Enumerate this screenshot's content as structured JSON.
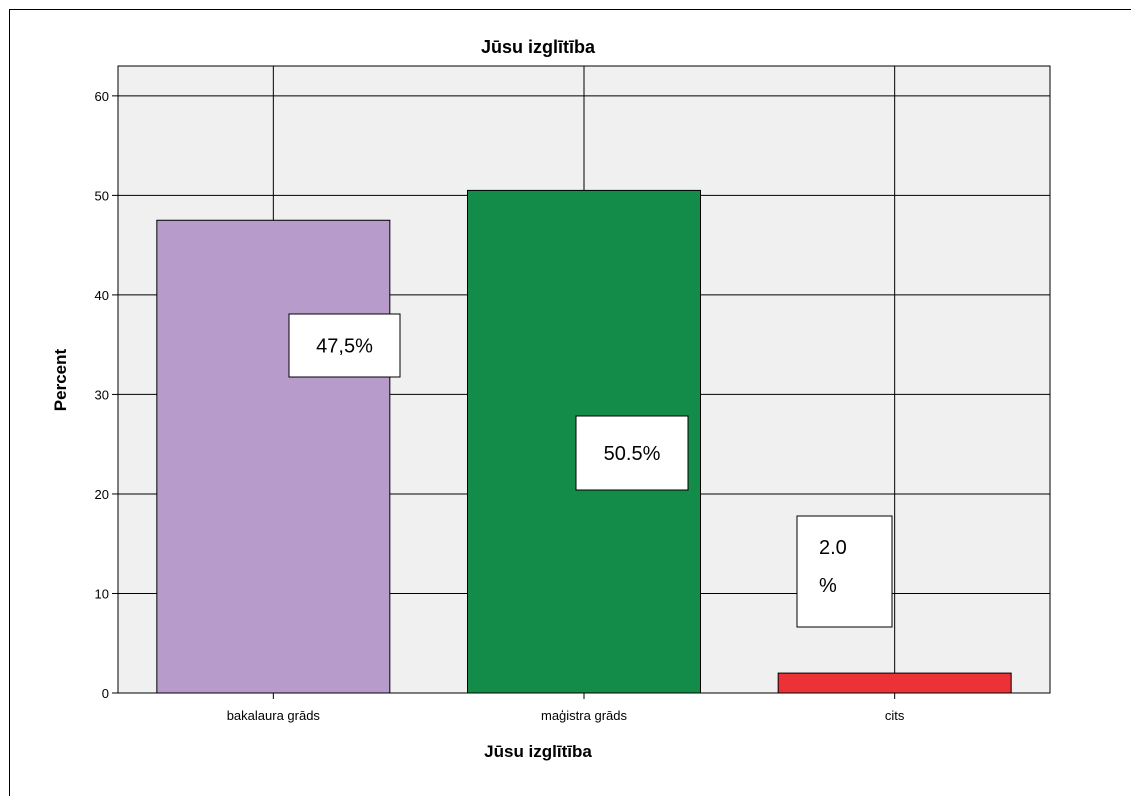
{
  "chart_data": {
    "type": "bar",
    "title": "Jūsu izglītība",
    "xlabel": "Jūsu izglītība",
    "ylabel": "Percent",
    "ylim": [
      0,
      63
    ],
    "yticks": [
      0,
      10,
      20,
      30,
      40,
      50,
      60
    ],
    "categories": [
      "bakalaura grāds",
      "maģistra grāds",
      "cits"
    ],
    "values": [
      47.5,
      50.5,
      2.0
    ],
    "colors": [
      "#b79bcb",
      "#128c48",
      "#ec3237"
    ],
    "grid": true,
    "plot_background": "#f0f0f0",
    "annotations": [
      {
        "lines": [
          "47,5%"
        ]
      },
      {
        "lines": [
          "50.5%"
        ]
      },
      {
        "lines": [
          "2.0",
          "%"
        ]
      }
    ]
  }
}
